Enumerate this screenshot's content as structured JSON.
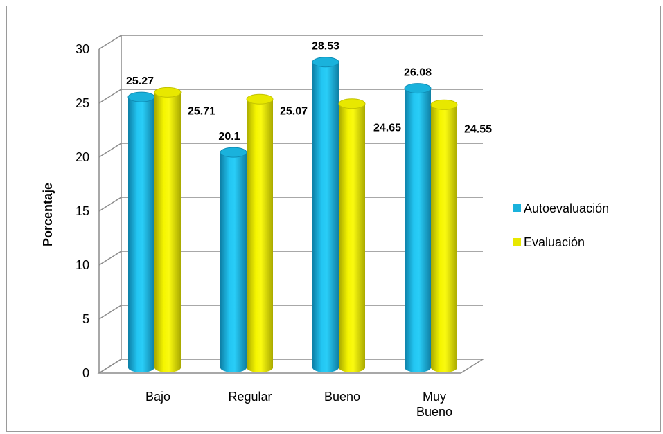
{
  "chart_data": {
    "type": "bar",
    "title": "",
    "xlabel": "",
    "ylabel": "Porcentaje",
    "ylim": [
      0,
      30
    ],
    "yticks": [
      0,
      5,
      10,
      15,
      20,
      25,
      30
    ],
    "categories": [
      [
        "Bajo"
      ],
      [
        "Regular"
      ],
      [
        "Bueno"
      ],
      [
        "Muy",
        "Bueno"
      ]
    ],
    "series": [
      {
        "name": "Autoevaluación",
        "values": [
          25.27,
          20.1,
          28.53,
          26.08
        ],
        "labels": [
          "25.27",
          "20.1",
          "28.53",
          "26.08"
        ],
        "color": "#1ab2dc"
      },
      {
        "name": "Evaluación",
        "values": [
          25.71,
          25.07,
          24.65,
          24.55
        ],
        "labels": [
          "25.71",
          "25.07",
          "24.65",
          "24.55"
        ],
        "color": "#e8e800"
      }
    ],
    "grid": true,
    "legend": "right",
    "style": "3d-cylinder"
  }
}
